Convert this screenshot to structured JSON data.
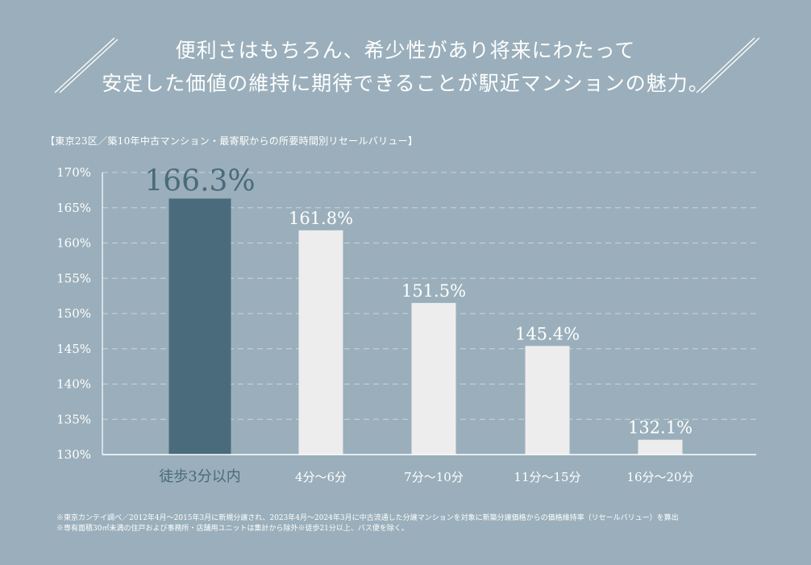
{
  "headline": {
    "line1": "便利さはもちろん、希少性があり将来にわたって",
    "line2": "安定した価値の維持に期待できることが駅近マンションの魅力。"
  },
  "chart_data": {
    "type": "bar",
    "title": "【東京23区／築10年中古マンション・最寄駅からの所要時間別リセールバリュー】",
    "categories": [
      "徒歩3分以内",
      "4分〜6分",
      "7分〜10分",
      "11分〜15分",
      "16分〜20分"
    ],
    "values": [
      166.3,
      161.8,
      151.5,
      145.4,
      132.1
    ],
    "value_labels": [
      "166.3%",
      "161.8%",
      "151.5%",
      "145.4%",
      "132.1%"
    ],
    "highlight_index": 0,
    "ylim": [
      130,
      170
    ],
    "yticks": [
      170,
      165,
      160,
      155,
      150,
      145,
      140,
      135,
      130
    ],
    "ytick_labels": [
      "170%",
      "165%",
      "160%",
      "155%",
      "150%",
      "145%",
      "140%",
      "135%",
      "130%"
    ],
    "grid": true,
    "xlabel": "",
    "ylabel": "",
    "colors": {
      "highlight": "#4a6b7b",
      "bar": "#ededed",
      "grid": "#c9d5db",
      "axis": "#ffffff"
    }
  },
  "notes": [
    "※東京カンテイ調べ／2012年4月〜2015年3月に新規分譲され、2023年4月〜2024年3月に中古流通した分譲マンションを対象に新築分譲価格からの価格維持率（リセールバリュー）を算出",
    "※専有面積30㎡未満の住戸および事務所・店舗用ユニットは集計から除外※徒歩21分以上、バス便を除く。"
  ]
}
